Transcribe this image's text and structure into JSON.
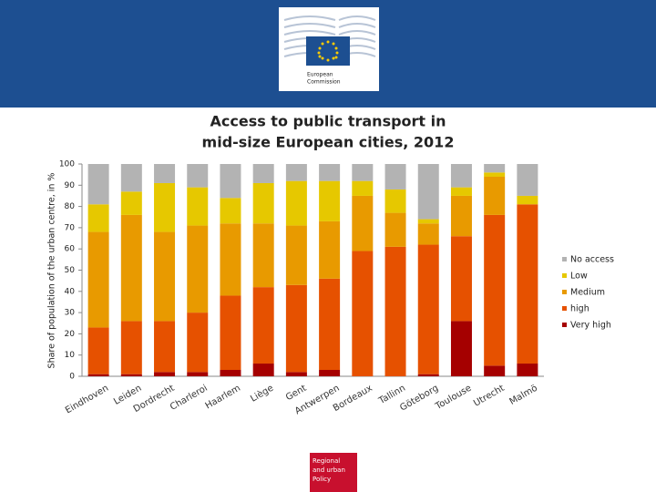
{
  "header": {
    "logo_text": [
      "European",
      "Commission"
    ]
  },
  "footer": {
    "logo_text": [
      "Regional",
      "and urban",
      "Policy"
    ]
  },
  "chart_data": {
    "type": "stacked-bar",
    "title": [
      "Access to public transport in",
      "mid-size European cities, 2012"
    ],
    "y_label": "Share of population of the urban centre, in %",
    "categories": [
      "Eindhoven",
      "Leiden",
      "Dordrecht",
      "Charleroi",
      "Haarlem",
      "Liège",
      "Gent",
      "Antwerpen",
      "Bordeaux",
      "Tallinn",
      "Göteborg",
      "Toulouse",
      "Utrecht",
      "Malmö"
    ],
    "series": [
      {
        "name": "Very high",
        "color": "#a50000",
        "values": [
          1,
          1,
          2,
          2,
          3,
          6,
          2,
          3,
          0,
          0,
          1,
          26,
          5,
          6
        ]
      },
      {
        "name": "high",
        "color": "#e65100",
        "values": [
          22,
          25,
          24,
          28,
          35,
          36,
          41,
          43,
          59,
          61,
          61,
          40,
          71,
          75
        ]
      },
      {
        "name": "Medium",
        "color": "#e89a00",
        "values": [
          45,
          50,
          42,
          41,
          34,
          30,
          28,
          27,
          26,
          16,
          10,
          19,
          18,
          0
        ]
      },
      {
        "name": "Low",
        "color": "#e6c800",
        "values": [
          13,
          11,
          23,
          18,
          12,
          19,
          21,
          19,
          7,
          11,
          2,
          4,
          2,
          4
        ]
      },
      {
        "name": "No access",
        "color": "#b3b3b3",
        "values": [
          19,
          13,
          9,
          11,
          16,
          9,
          8,
          8,
          8,
          12,
          26,
          11,
          4,
          15
        ]
      }
    ],
    "ylim": [
      0,
      100
    ],
    "yticks": [
      0,
      10,
      20,
      30,
      40,
      50,
      60,
      70,
      80,
      90,
      100
    ],
    "grid": false,
    "legend": "right"
  }
}
